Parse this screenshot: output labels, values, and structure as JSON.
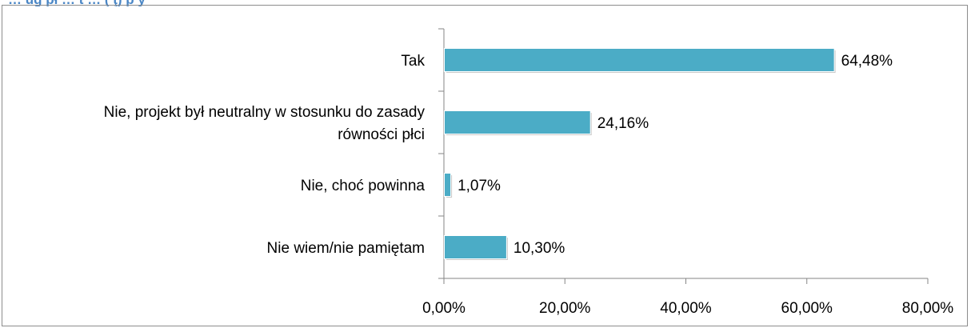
{
  "header": {
    "caption_partial": "… ug pł … t … ( ţ) p y"
  },
  "chart_data": {
    "type": "bar",
    "orientation": "horizontal",
    "title": "",
    "xlabel": "",
    "ylabel": "",
    "categories": [
      "Tak",
      "Nie, projekt był neutralny w stosunku do zasady równości płci",
      "Nie, choć powinna",
      "Nie wiem/nie pamiętam"
    ],
    "category_lines": [
      [
        "Tak"
      ],
      [
        "Nie, projekt był neutralny w stosunku do zasady",
        "równości płci"
      ],
      [
        "Nie, choć powinna"
      ],
      [
        "Nie wiem/nie pamiętam"
      ]
    ],
    "values": [
      64.48,
      24.16,
      1.07,
      10.3
    ],
    "value_labels": [
      "64,48%",
      "24,16%",
      "1,07%",
      "10,30%"
    ],
    "xlim": [
      0,
      80
    ],
    "ticks": [
      0,
      20,
      40,
      60,
      80
    ],
    "tick_labels": [
      "0,00%",
      "20,00%",
      "40,00%",
      "60,00%",
      "80,00%"
    ],
    "grid": false,
    "legend": "none",
    "bar_color": "#4bacc6",
    "bar_highlight": "#ffffff"
  }
}
